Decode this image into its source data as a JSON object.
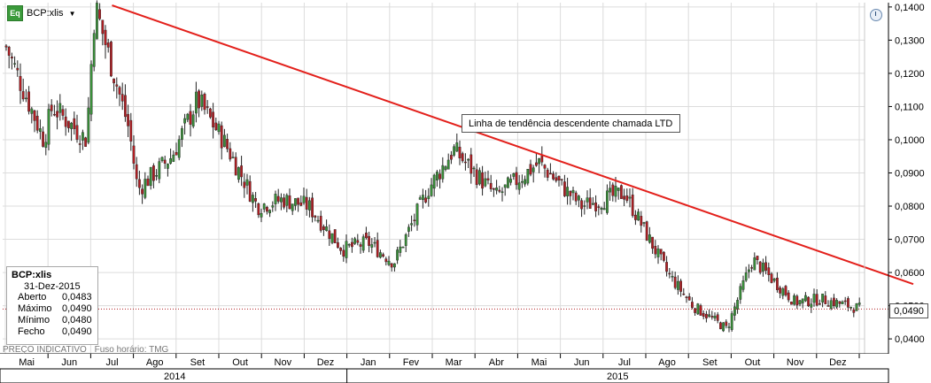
{
  "header": {
    "icon_label": "Eq",
    "symbol": "BCP:xlis"
  },
  "infobox": {
    "symbol": "BCP:xlis",
    "date": "31-Dez-2015",
    "rows": [
      {
        "label": "Aberto",
        "value": "0,0483"
      },
      {
        "label": "Máximo",
        "value": "0,0490"
      },
      {
        "label": "Mínimo",
        "value": "0,0480"
      },
      {
        "label": "Fecho",
        "value": "0,0490"
      }
    ]
  },
  "footer": {
    "price_note": "PREÇO INDICATIVO",
    "timezone": "Fuso horário: TMG"
  },
  "annotation": "Linha de tendência descendente chamada LTD",
  "last_price_label": "0,0490",
  "colors": {
    "up": "#3a8f3a",
    "down": "#b01e23",
    "trendline": "#e3201b",
    "grid": "#dcdcdc"
  },
  "chart_data": {
    "type": "candlestick",
    "title": "",
    "xlabel": "",
    "ylabel": "",
    "ylim": [
      0.0355,
      0.1413
    ],
    "y_ticks": [
      "0,0400",
      "0,0500",
      "0,0600",
      "0,0700",
      "0,0800",
      "0,0900",
      "0,1000",
      "0,1100",
      "0,1200",
      "0,1300",
      "0,1400"
    ],
    "y_tick_values": [
      0.04,
      0.05,
      0.06,
      0.07,
      0.08,
      0.09,
      0.1,
      0.11,
      0.12,
      0.13,
      0.14
    ],
    "x_months": [
      "Mai",
      "Jun",
      "Jul",
      "Ago",
      "Set",
      "Out",
      "Nov",
      "Dez",
      "Jan",
      "Fev",
      "Mar",
      "Abr",
      "Mai",
      "Jun",
      "Jul",
      "Ago",
      "Set",
      "Out",
      "Nov",
      "Dez"
    ],
    "x_years": [
      "2014",
      "2015"
    ],
    "grid": true,
    "approx_close_path": [
      {
        "month": "Mai 2014",
        "value": 0.128
      },
      {
        "month": "Mai 2014",
        "value": 0.1
      },
      {
        "month": "Jun 2014",
        "value": 0.11
      },
      {
        "month": "Jun 2014",
        "value": 0.1
      },
      {
        "month": "Jul 2014",
        "value": 0.1405
      },
      {
        "month": "Jul 2014",
        "value": 0.103
      },
      {
        "month": "Ago 2014",
        "value": 0.085
      },
      {
        "month": "Ago 2014",
        "value": 0.095
      },
      {
        "month": "Set 2014",
        "value": 0.112
      },
      {
        "month": "Out 2014",
        "value": 0.1
      },
      {
        "month": "Out 2014",
        "value": 0.08
      },
      {
        "month": "Nov 2014",
        "value": 0.082
      },
      {
        "month": "Dez 2014",
        "value": 0.08
      },
      {
        "month": "Dez 2014",
        "value": 0.067
      },
      {
        "month": "Jan 2015",
        "value": 0.069
      },
      {
        "month": "Fev 2015",
        "value": 0.063
      },
      {
        "month": "Fev 2015",
        "value": 0.085
      },
      {
        "month": "Mar 2015",
        "value": 0.097
      },
      {
        "month": "Abr 2015",
        "value": 0.083
      },
      {
        "month": "Mai 2015",
        "value": 0.093
      },
      {
        "month": "Jun 2015",
        "value": 0.08
      },
      {
        "month": "Jul 2015",
        "value": 0.084
      },
      {
        "month": "Ago 2015",
        "value": 0.06
      },
      {
        "month": "Set 2015",
        "value": 0.05
      },
      {
        "month": "Set 2015",
        "value": 0.043
      },
      {
        "month": "Out 2015",
        "value": 0.064
      },
      {
        "month": "Nov 2015",
        "value": 0.051
      },
      {
        "month": "Dez 2015",
        "value": 0.052
      },
      {
        "month": "Dez 2015",
        "value": 0.049
      }
    ],
    "last_candle": {
      "date": "31-Dez-2015",
      "open": 0.0483,
      "high": 0.049,
      "low": 0.048,
      "close": 0.049
    },
    "trendline": {
      "start": {
        "month": "Jul 2014",
        "value": 0.1405
      },
      "end": {
        "month": "Dez 2015",
        "value": 0.0565
      }
    },
    "reference_line": 0.049
  }
}
